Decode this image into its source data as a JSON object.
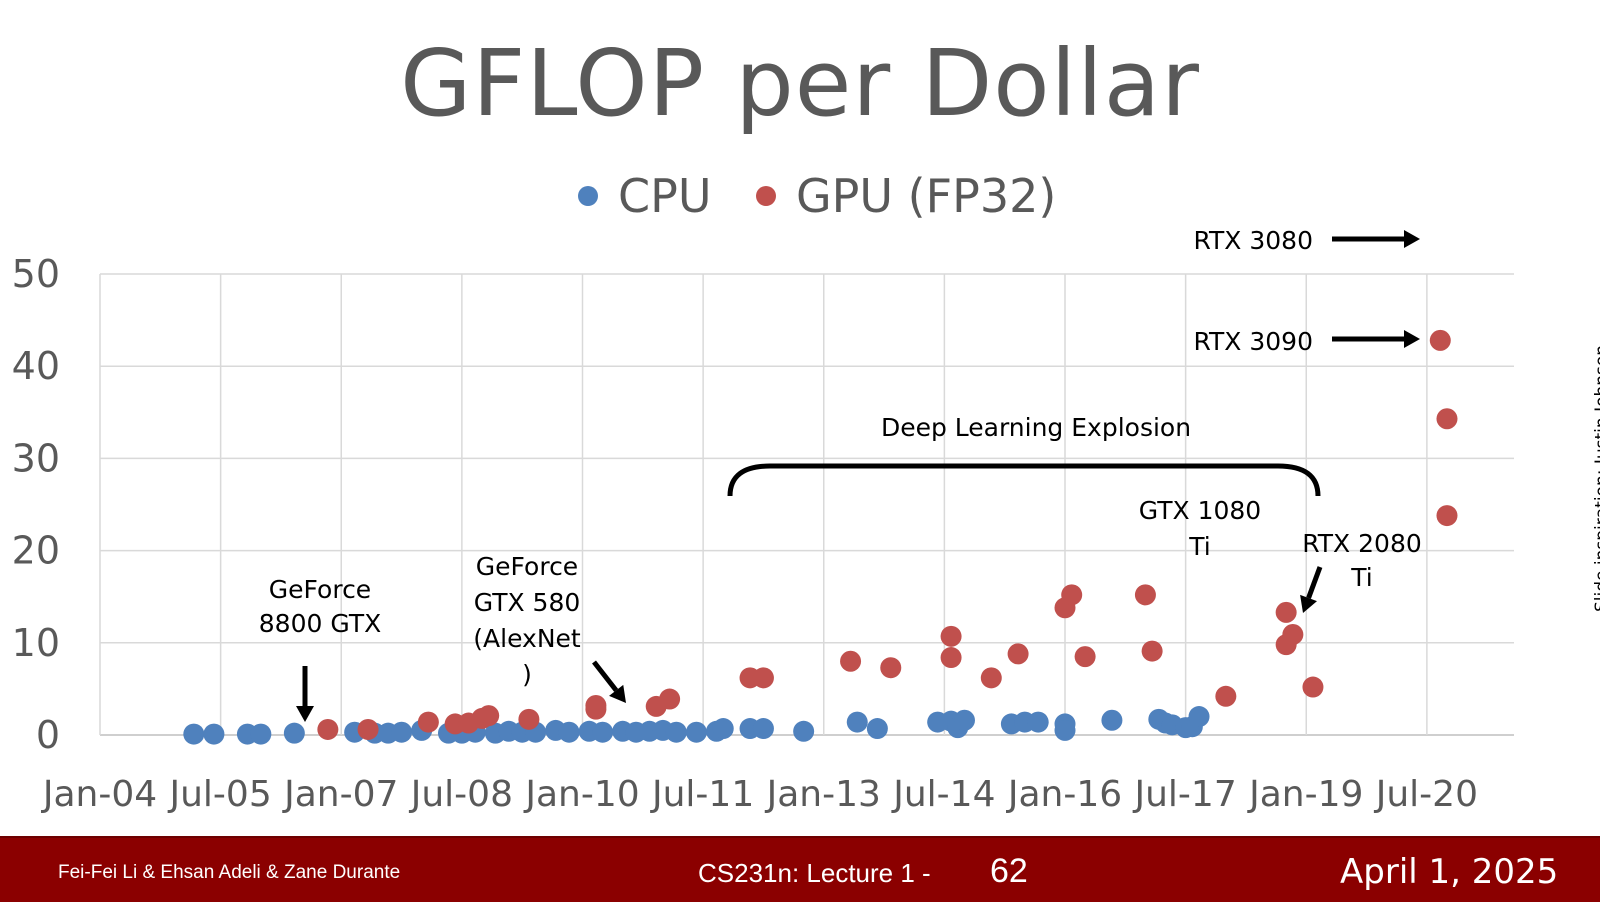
{
  "slide": {
    "title": "GFLOP per Dollar",
    "side_credit": "Slide inspiration: Justin Johnson"
  },
  "footer": {
    "authors": "Fei-Fei Li & Ehsan Adeli & Zane Durante",
    "course": "CS231n: Lecture 1 -",
    "page": "62",
    "date": "April 1, 2025"
  },
  "colors": {
    "cpu": "#4f81bd",
    "gpu": "#c0504d",
    "grid": "#d9d9d9",
    "text": "#595959",
    "footer_bg": "#8b0000"
  },
  "chart_data": {
    "type": "scatter",
    "title": "GFLOP per Dollar",
    "xlabel": "",
    "ylabel": "",
    "ylim": [
      0,
      50
    ],
    "yticks": [
      "0",
      "10",
      "20",
      "30",
      "40",
      "50"
    ],
    "xticks": [
      "Jan-04",
      "Jul-05",
      "Jan-07",
      "Jul-08",
      "Jan-10",
      "Jul-11",
      "Jan-13",
      "Jul-14",
      "Jan-16",
      "Jul-17",
      "Jan-19",
      "Jul-20"
    ],
    "xlim": [
      "2004-01",
      "2021-08"
    ],
    "grid": true,
    "legend_position": "top",
    "series": [
      {
        "name": "CPU",
        "color": "#4f81bd",
        "points": [
          {
            "x": "2005-03",
            "y": 0.1
          },
          {
            "x": "2005-06",
            "y": 0.1
          },
          {
            "x": "2005-11",
            "y": 0.1
          },
          {
            "x": "2006-01",
            "y": 0.1
          },
          {
            "x": "2006-06",
            "y": 0.2
          },
          {
            "x": "2007-03",
            "y": 0.3
          },
          {
            "x": "2007-06",
            "y": 0.2
          },
          {
            "x": "2007-08",
            "y": 0.2
          },
          {
            "x": "2007-10",
            "y": 0.3
          },
          {
            "x": "2008-01",
            "y": 0.5
          },
          {
            "x": "2008-05",
            "y": 0.2
          },
          {
            "x": "2008-07",
            "y": 0.2
          },
          {
            "x": "2008-09",
            "y": 0.3
          },
          {
            "x": "2008-12",
            "y": 0.2
          },
          {
            "x": "2009-02",
            "y": 0.4
          },
          {
            "x": "2009-04",
            "y": 0.3
          },
          {
            "x": "2009-06",
            "y": 0.3
          },
          {
            "x": "2009-09",
            "y": 0.5
          },
          {
            "x": "2009-11",
            "y": 0.3
          },
          {
            "x": "2010-02",
            "y": 0.4
          },
          {
            "x": "2010-04",
            "y": 0.3
          },
          {
            "x": "2010-07",
            "y": 0.4
          },
          {
            "x": "2010-09",
            "y": 0.3
          },
          {
            "x": "2010-11",
            "y": 0.4
          },
          {
            "x": "2011-01",
            "y": 0.5
          },
          {
            "x": "2011-03",
            "y": 0.3
          },
          {
            "x": "2011-06",
            "y": 0.3
          },
          {
            "x": "2011-09",
            "y": 0.4
          },
          {
            "x": "2011-10",
            "y": 0.7
          },
          {
            "x": "2012-02",
            "y": 0.7
          },
          {
            "x": "2012-04",
            "y": 0.7
          },
          {
            "x": "2012-10",
            "y": 0.4
          },
          {
            "x": "2013-06",
            "y": 1.4
          },
          {
            "x": "2013-09",
            "y": 0.7
          },
          {
            "x": "2014-06",
            "y": 1.4
          },
          {
            "x": "2014-08",
            "y": 1.5
          },
          {
            "x": "2014-09",
            "y": 0.8
          },
          {
            "x": "2014-10",
            "y": 1.6
          },
          {
            "x": "2015-05",
            "y": 1.2
          },
          {
            "x": "2015-07",
            "y": 1.4
          },
          {
            "x": "2015-09",
            "y": 1.4
          },
          {
            "x": "2016-01",
            "y": 1.2
          },
          {
            "x": "2016-01",
            "y": 0.5
          },
          {
            "x": "2016-08",
            "y": 1.6
          },
          {
            "x": "2017-03",
            "y": 1.7
          },
          {
            "x": "2017-04",
            "y": 1.3
          },
          {
            "x": "2017-05",
            "y": 1.1
          },
          {
            "x": "2017-07",
            "y": 0.8
          },
          {
            "x": "2017-08",
            "y": 0.9
          },
          {
            "x": "2017-09",
            "y": 2.0
          }
        ]
      },
      {
        "name": "GPU (FP32)",
        "color": "#c0504d",
        "points": [
          {
            "x": "2006-11",
            "y": 0.6
          },
          {
            "x": "2007-05",
            "y": 0.6
          },
          {
            "x": "2008-02",
            "y": 1.4
          },
          {
            "x": "2008-06",
            "y": 1.2
          },
          {
            "x": "2008-08",
            "y": 1.3
          },
          {
            "x": "2008-10",
            "y": 1.8
          },
          {
            "x": "2008-11",
            "y": 2.1
          },
          {
            "x": "2009-05",
            "y": 1.7
          },
          {
            "x": "2010-03",
            "y": 2.8
          },
          {
            "x": "2010-03",
            "y": 3.2
          },
          {
            "x": "2010-12",
            "y": 3.1
          },
          {
            "x": "2011-02",
            "y": 3.9
          },
          {
            "x": "2012-02",
            "y": 6.2
          },
          {
            "x": "2012-04",
            "y": 6.2
          },
          {
            "x": "2013-05",
            "y": 8.0
          },
          {
            "x": "2013-11",
            "y": 7.3
          },
          {
            "x": "2014-08",
            "y": 10.7
          },
          {
            "x": "2014-08",
            "y": 8.4
          },
          {
            "x": "2015-02",
            "y": 6.2
          },
          {
            "x": "2015-06",
            "y": 8.8
          },
          {
            "x": "2016-01",
            "y": 13.8
          },
          {
            "x": "2016-02",
            "y": 15.2
          },
          {
            "x": "2016-04",
            "y": 8.5
          },
          {
            "x": "2017-01",
            "y": 15.2
          },
          {
            "x": "2017-02",
            "y": 9.1
          },
          {
            "x": "2018-01",
            "y": 4.2
          },
          {
            "x": "2018-10",
            "y": 13.3
          },
          {
            "x": "2018-11",
            "y": 10.9
          },
          {
            "x": "2018-10",
            "y": 9.8
          },
          {
            "x": "2019-02",
            "y": 5.2
          },
          {
            "x": "2020-09",
            "y": 42.8
          },
          {
            "x": "2020-10",
            "y": 34.3
          },
          {
            "x": "2020-10",
            "y": 23.8
          }
        ]
      }
    ],
    "annotations": [
      {
        "text": [
          "GeForce",
          "8800 GTX"
        ],
        "arrow": "down",
        "target": {
          "x": "2006-11",
          "y": 0.6
        }
      },
      {
        "text": [
          "GeForce",
          "GTX 580",
          "(AlexNet",
          ")"
        ],
        "arrow": "down-right",
        "target": {
          "x": "2010-12",
          "y": 3.1
        }
      },
      {
        "text": [
          "Deep Learning Explosion"
        ],
        "arrow": "bracket",
        "range": [
          "2011-10",
          "2018-12"
        ]
      },
      {
        "text": [
          "GTX 1080",
          "Ti"
        ],
        "arrow": "none"
      },
      {
        "text": [
          "RTX 2080",
          "Ti"
        ],
        "arrow": "down-left",
        "target": {
          "x": "2019-01",
          "y": 13
        }
      },
      {
        "text": [
          "RTX 3090"
        ],
        "arrow": "right",
        "target": {
          "x": "2020-09",
          "y": 42.8
        }
      },
      {
        "text": [
          "RTX 3080"
        ],
        "arrow": "right",
        "target": {
          "x": "2020-09",
          "y": 54
        }
      }
    ]
  }
}
